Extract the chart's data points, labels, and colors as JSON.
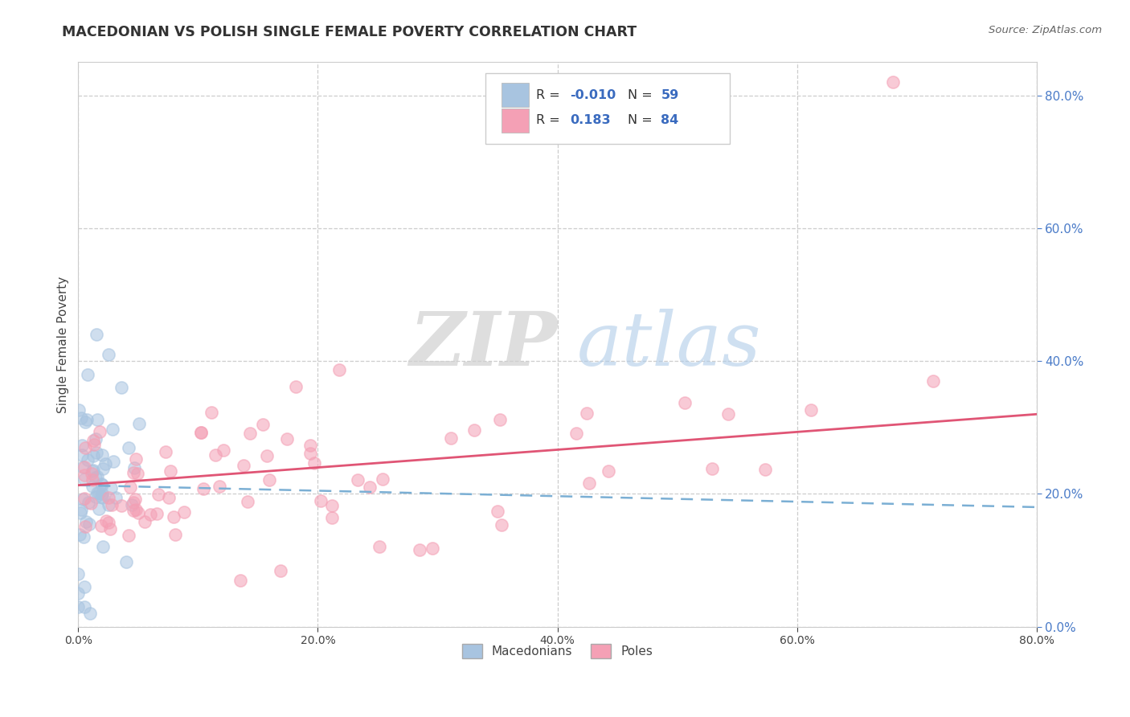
{
  "title": "MACEDONIAN VS POLISH SINGLE FEMALE POVERTY CORRELATION CHART",
  "source": "Source: ZipAtlas.com",
  "ylabel": "Single Female Poverty",
  "xlim": [
    0.0,
    0.8
  ],
  "ylim": [
    0.0,
    0.85
  ],
  "yticks": [
    0.0,
    0.2,
    0.4,
    0.6,
    0.8
  ],
  "xticks": [
    0.0,
    0.2,
    0.4,
    0.6,
    0.8
  ],
  "macedonian_color": "#a8c4e0",
  "polish_color": "#f4a0b5",
  "macedonian_line_color": "#7bafd4",
  "polish_line_color": "#e05575",
  "r_color": "#3a6bbf",
  "legend_R_macedonian": "-0.010",
  "legend_N_macedonian": "59",
  "legend_R_polish": "0.183",
  "legend_N_polish": "84",
  "watermark_zip": "ZIP",
  "watermark_atlas": "atlas",
  "background_color": "#ffffff",
  "grid_color": "#c8c8c8",
  "tick_color": "#4a7bc8"
}
